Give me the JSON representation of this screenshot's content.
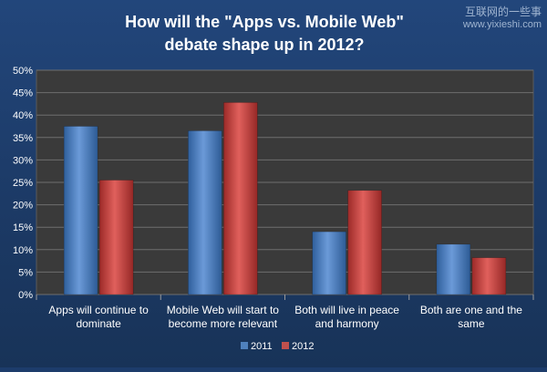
{
  "watermark": {
    "line1": "互联网的一些事",
    "line2": "www.yixieshi.com"
  },
  "chart_data": {
    "type": "bar",
    "title": [
      "How will the \"Apps vs. Mobile Web\"",
      "debate shape up in 2012?"
    ],
    "categories": [
      [
        "Apps will continue to",
        "dominate"
      ],
      [
        "Mobile Web will start to",
        "become more relevant"
      ],
      [
        "Both will live in peace",
        "and harmony"
      ],
      [
        "Both are one and the",
        "same"
      ]
    ],
    "series": [
      {
        "name": "2011",
        "values": [
          37.5,
          36.5,
          14,
          11.2
        ],
        "color": "#4f81bd"
      },
      {
        "name": "2012",
        "values": [
          25.5,
          42.8,
          23.2,
          8.2
        ],
        "color": "#c0504d"
      }
    ],
    "ylim": [
      0,
      50
    ],
    "yticks": [
      0,
      5,
      10,
      15,
      20,
      25,
      30,
      35,
      40,
      45,
      50
    ],
    "ytick_format": "percent",
    "xlabel": "",
    "ylabel": "",
    "legend": "bottom"
  }
}
